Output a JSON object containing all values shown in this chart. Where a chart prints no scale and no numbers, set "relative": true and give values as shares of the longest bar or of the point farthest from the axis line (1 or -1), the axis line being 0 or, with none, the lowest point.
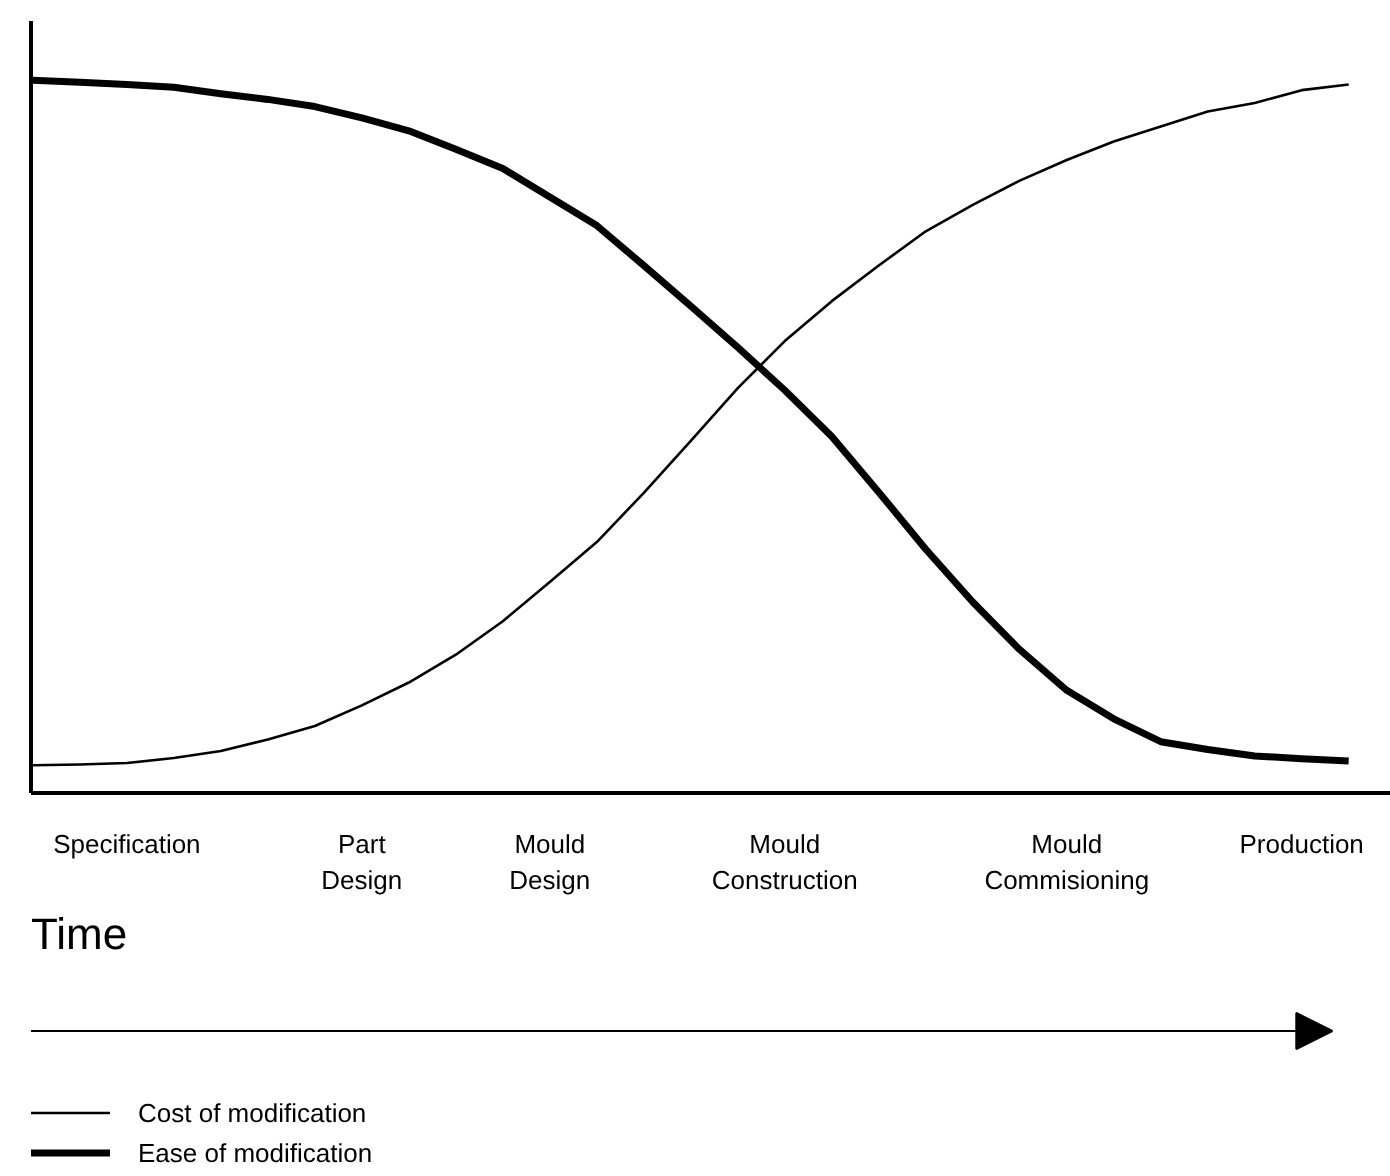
{
  "chart_data": {
    "type": "line",
    "relative": true,
    "xlabel": "Time",
    "categories": [
      null,
      null,
      "Specification",
      null,
      null,
      null,
      null,
      "Part\nDesign",
      null,
      null,
      null,
      "Mould\nDesign",
      null,
      null,
      null,
      null,
      "Mould\nConstruction",
      null,
      null,
      null,
      null,
      null,
      "Mould\nCommisioning",
      null,
      null,
      null,
      null,
      "Production",
      null
    ],
    "series": [
      {
        "name": "Cost of modification",
        "color": "#000000",
        "values": [
          0.039,
          0.04,
          0.042,
          0.049,
          0.059,
          0.075,
          0.094,
          0.123,
          0.155,
          0.194,
          0.241,
          0.296,
          0.352,
          0.421,
          0.494,
          0.568,
          0.634,
          0.69,
          0.74,
          0.788,
          0.825,
          0.859,
          0.888,
          0.914,
          0.935,
          0.956,
          0.968,
          0.986,
          0.994
        ]
      },
      {
        "name": "Ease of modification",
        "color": "#000000",
        "values": [
          1.0,
          0.997,
          0.994,
          0.99,
          0.981,
          0.973,
          0.963,
          0.947,
          0.929,
          0.903,
          0.876,
          0.836,
          0.796,
          0.74,
          0.683,
          0.625,
          0.565,
          0.5,
          0.422,
          0.342,
          0.268,
          0.201,
          0.144,
          0.104,
          0.072,
          0.061,
          0.052,
          0.048,
          0.045
        ]
      }
    ],
    "legend": "bottom",
    "grid": false,
    "line_style": "solid"
  }
}
